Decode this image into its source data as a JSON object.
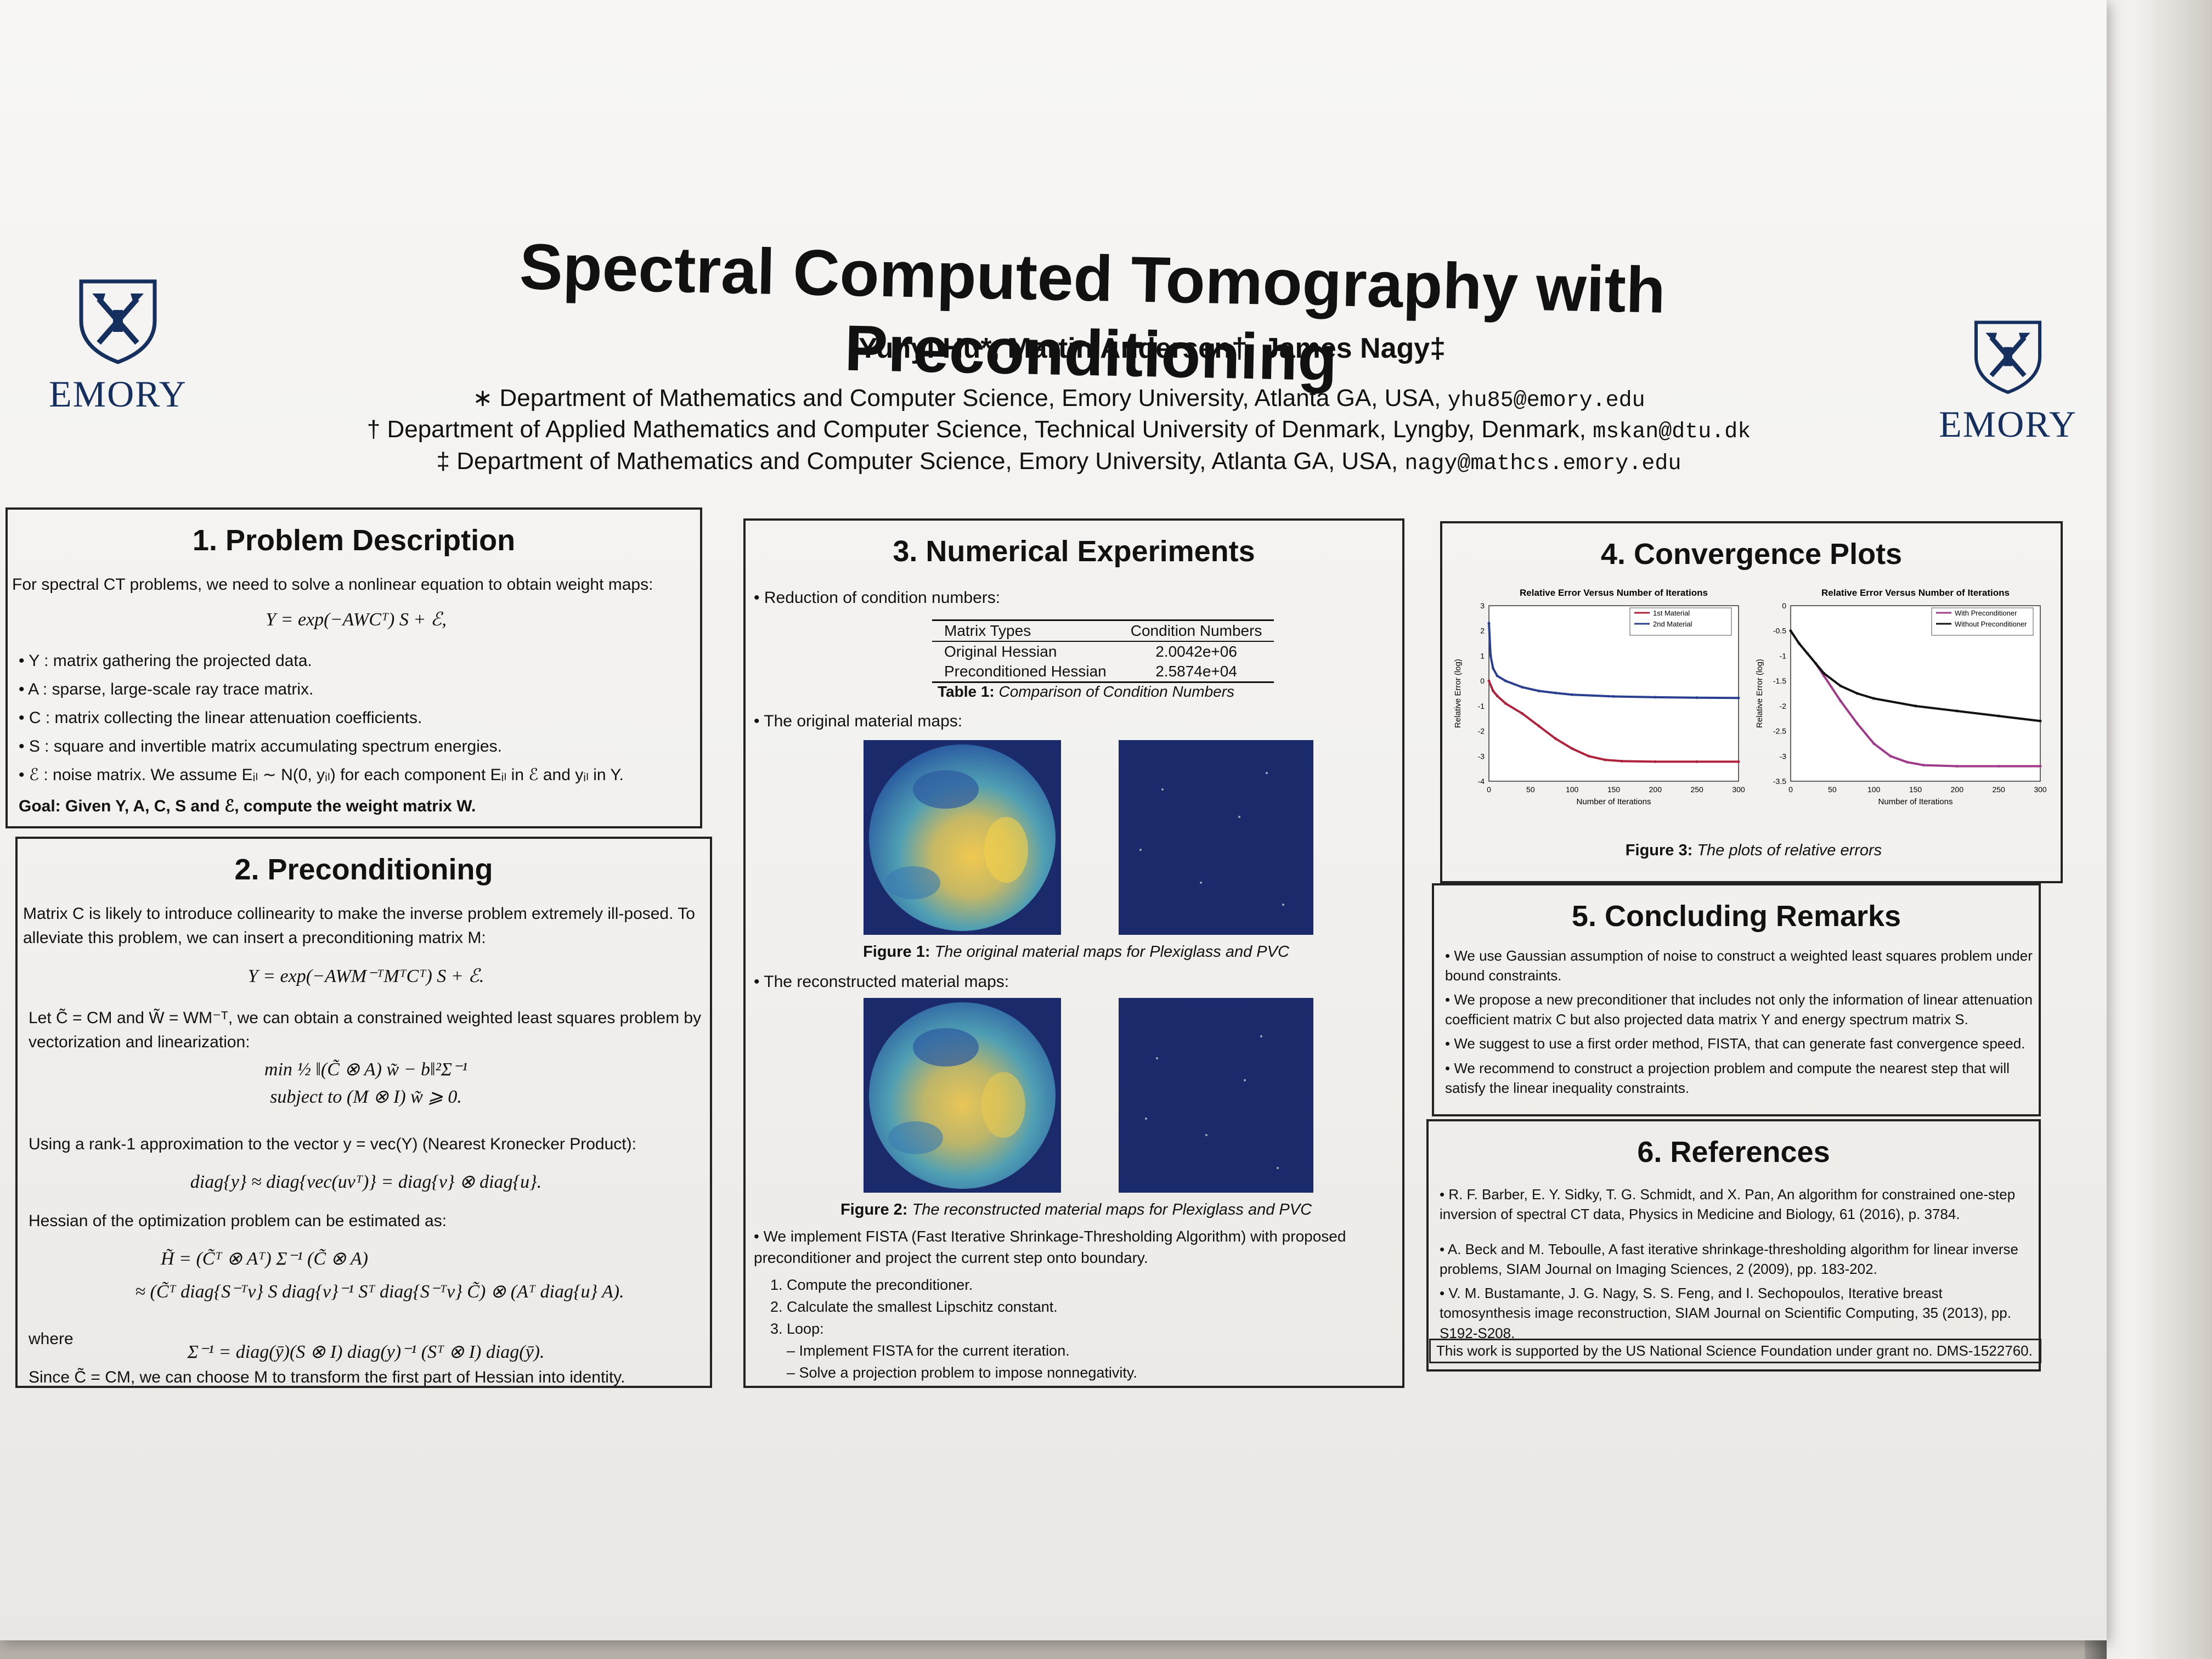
{
  "poster": {
    "title": "Spectral Computed Tomography with Preconditioning",
    "authors": "Yunyi Hu*, Martin Andersen†, James Nagy‡",
    "affiliations": [
      {
        "text": "∗ Department of Mathematics and Computer Science, Emory University, Atlanta GA, USA,",
        "email": "yhu85@emory.edu"
      },
      {
        "text": "† Department of Applied Mathematics and Computer Science, Technical University of Denmark, Lyngby, Denmark,",
        "email": "mskan@dtu.dk"
      },
      {
        "text": "‡ Department of Mathematics and Computer Science, Emory University, Atlanta GA, USA,",
        "email": "nagy@mathcs.emory.edu"
      }
    ],
    "logo_text": "EMORY",
    "colors": {
      "emory_blue": "#15305e",
      "map_navy": "#1b2a6b",
      "curve_blue": "#2a3f8f",
      "curve_red": "#b0213c",
      "curve_magenta": "#a03a8a",
      "curve_black": "#111111"
    }
  },
  "problem": {
    "heading": "1. Problem Description",
    "intro": "For spectral CT problems, we need to solve a nonlinear equation to obtain weight maps:",
    "equation": "Y = exp(−AWCᵀ) S + ℰ,",
    "bullets": [
      "• Y : matrix gathering the projected data.",
      "• A : sparse, large-scale ray trace matrix.",
      "• C : matrix collecting the linear attenuation coefficients.",
      "• S : square and invertible matrix accumulating spectrum energies.",
      "• ℰ : noise matrix. We assume Eᵢₗ ∼ N(0, yᵢₗ) for each component Eᵢₗ in ℰ and yᵢₗ in Y."
    ],
    "goal": "Goal: Given Y, A, C, S and ℰ, compute the weight matrix W."
  },
  "preconditioning": {
    "heading": "2. Preconditioning",
    "intro": "Matrix C is likely to introduce collinearity to make the inverse problem extremely ill-posed. To alleviate this problem, we can insert a preconditioning matrix M:",
    "equation1": "Y = exp(−AWM⁻ᵀMᵀCᵀ) S + ℰ.",
    "let_text": "Let C̃ = CM and W̃ = WM⁻ᵀ, we can obtain a constrained weighted least squares problem by vectorization and linearization:",
    "min_line": "min   ½ ‖(C̃ ⊗ A) w̃ − b‖²Σ⁻¹",
    "subject_line": "subject to   (M ⊗ I) w̃ ⩾ 0.",
    "rank1_text": "Using a rank-1 approximation to the vector y = vec(Y) (Nearest Kronecker Product):",
    "diag_eq": "diag{y} ≈ diag{vec(uvᵀ)} = diag{v} ⊗ diag{u}.",
    "hessian_text": "Hessian of the optimization problem can be estimated as:",
    "hessian_eq1": "H̃ = (C̃ᵀ ⊗ Aᵀ) Σ⁻¹ (C̃ ⊗ A)",
    "hessian_eq2": "≈ (C̃ᵀ diag{S⁻ᵀv} S diag{v}⁻¹ Sᵀ diag{S⁻ᵀv} C̃) ⊗ (Aᵀ diag{u} A).",
    "where": "where",
    "sigma_eq": "Σ⁻¹ = diag(ȳ)(S ⊗ I) diag(y)⁻¹ (Sᵀ ⊗ I) diag(ȳ).",
    "closing": "Since C̃ = CM, we can choose M to transform the first part of Hessian into identity."
  },
  "experiments": {
    "heading": "3. Numerical Experiments",
    "bullet1": "• Reduction of condition numbers:",
    "table": {
      "headers": [
        "Matrix Types",
        "Condition Numbers"
      ],
      "rows": [
        [
          "Original Hessian",
          "2.0042e+06"
        ],
        [
          "Preconditioned Hessian",
          "2.5874e+04"
        ]
      ],
      "caption_label": "Table 1:",
      "caption_text": "Comparison of Condition Numbers"
    },
    "bullet2": "• The original material maps:",
    "fig1_label": "Figure 1:",
    "fig1_text": "The original material maps for Plexiglass and PVC",
    "bullet3": "• The reconstructed material maps:",
    "fig2_label": "Figure 2:",
    "fig2_text": "The reconstructed material maps for Plexiglass and PVC",
    "bullet4": "• We implement FISTA (Fast Iterative Shrinkage-Thresholding Algorithm) with proposed preconditioner and project the current step onto boundary.",
    "steps": [
      "1. Compute the preconditioner.",
      "2. Calculate the smallest Lipschitz constant.",
      "3. Loop:",
      "– Implement FISTA for the current iteration.",
      "– Solve a projection problem to impose nonnegativity."
    ]
  },
  "convergence": {
    "heading": "4. Convergence Plots",
    "fig3_label": "Figure 3:",
    "fig3_text": "The plots of relative errors"
  },
  "chart_data": [
    {
      "type": "line",
      "title": "Relative Error Versus Number of Iterations",
      "xlabel": "Number of Iterations",
      "ylabel": "Relative Error (log)",
      "xlim": [
        0,
        300
      ],
      "ylim": [
        -4,
        3
      ],
      "xticks": [
        0,
        50,
        100,
        150,
        200,
        250,
        300
      ],
      "yticks": [
        -4,
        -3,
        -2,
        -1,
        0,
        1,
        2,
        3
      ],
      "legend_position": "top-right",
      "series": [
        {
          "name": "1st Material",
          "color": "#b0213c",
          "x": [
            0,
            5,
            10,
            20,
            40,
            60,
            80,
            100,
            120,
            140,
            160,
            200,
            250,
            300
          ],
          "y": [
            0.0,
            -0.4,
            -0.6,
            -0.9,
            -1.3,
            -1.8,
            -2.3,
            -2.7,
            -3.0,
            -3.15,
            -3.2,
            -3.22,
            -3.22,
            -3.22
          ]
        },
        {
          "name": "2nd Material",
          "color": "#2a3f8f",
          "x": [
            0,
            2,
            5,
            10,
            20,
            40,
            60,
            80,
            100,
            150,
            200,
            250,
            300
          ],
          "y": [
            2.3,
            1.0,
            0.5,
            0.2,
            0.0,
            -0.25,
            -0.4,
            -0.48,
            -0.55,
            -0.62,
            -0.65,
            -0.67,
            -0.68
          ]
        }
      ]
    },
    {
      "type": "line",
      "title": "Relative Error Versus Number of Iterations",
      "xlabel": "Number of Iterations",
      "ylabel": "Relative Error (log)",
      "xlim": [
        0,
        300
      ],
      "ylim": [
        -3.5,
        0
      ],
      "xticks": [
        0,
        50,
        100,
        150,
        200,
        250,
        300
      ],
      "yticks": [
        -3.5,
        -3,
        -2.5,
        -2,
        -1.5,
        -1,
        -0.5,
        0
      ],
      "legend_position": "top-right",
      "series": [
        {
          "name": "With Preconditioner",
          "color": "#a03a8a",
          "x": [
            0,
            10,
            20,
            30,
            40,
            60,
            80,
            100,
            120,
            140,
            160,
            200,
            250,
            300
          ],
          "y": [
            -0.5,
            -0.75,
            -0.95,
            -1.15,
            -1.4,
            -1.9,
            -2.35,
            -2.75,
            -3.0,
            -3.12,
            -3.18,
            -3.2,
            -3.2,
            -3.2
          ]
        },
        {
          "name": "Without Preconditioner",
          "color": "#111111",
          "x": [
            0,
            10,
            20,
            30,
            40,
            60,
            80,
            100,
            150,
            200,
            250,
            300
          ],
          "y": [
            -0.5,
            -0.75,
            -0.95,
            -1.15,
            -1.35,
            -1.6,
            -1.75,
            -1.85,
            -2.0,
            -2.1,
            -2.2,
            -2.3
          ]
        }
      ]
    }
  ],
  "remarks": {
    "heading": "5. Concluding Remarks",
    "items": [
      "• We use Gaussian assumption of noise to construct a weighted least squares problem under bound constraints.",
      "• We propose a new preconditioner that includes not only the information of linear attenuation coefficient matrix C but also projected data matrix Y and energy spectrum matrix S.",
      "• We suggest to use a first order method, FISTA, that can generate fast convergence speed.",
      "• We recommend to construct a projection problem and compute the nearest step that will satisfy the linear inequality constraints."
    ]
  },
  "references": {
    "heading": "6. References",
    "items": [
      "• R. F. Barber, E. Y. Sidky, T. G. Schmidt, and X. Pan, An algorithm for constrained one-step inversion of spectral CT data, Physics in Medicine and Biology, 61 (2016), p. 3784.",
      "• A. Beck and M. Teboulle, A fast iterative shrinkage-thresholding algorithm for linear inverse problems, SIAM Journal on Imaging Sciences, 2 (2009), pp. 183-202.",
      "• V. M. Bustamante, J. G. Nagy, S. S. Feng, and I. Sechopoulos, Iterative breast tomosynthesis image reconstruction, SIAM Journal on Scientific Computing, 35 (2013), pp. S192-S208."
    ],
    "funding": "This work is supported by the US National Science Foundation under grant no. DMS-1522760."
  }
}
